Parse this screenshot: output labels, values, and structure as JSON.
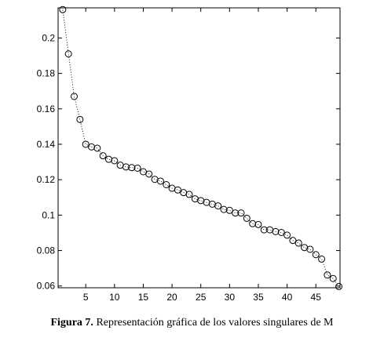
{
  "caption": {
    "label": "Figura 7.",
    "text": " Representación gráfica de los valores singulares de M"
  },
  "chart_data": {
    "type": "line",
    "title": "",
    "xlabel": "",
    "ylabel": "",
    "xlim": [
      0.2,
      49.2
    ],
    "ylim": [
      0.059,
      0.217
    ],
    "xticks": [
      5,
      10,
      15,
      20,
      25,
      30,
      35,
      40,
      45
    ],
    "xtick_labels": [
      "5",
      "10",
      "15",
      "20",
      "25",
      "30",
      "35",
      "40",
      "45"
    ],
    "yticks": [
      0.06,
      0.08,
      0.1,
      0.12,
      0.14,
      0.16,
      0.18,
      0.2
    ],
    "ytick_labels": [
      "0.06",
      "0.08",
      "0.1",
      "0.12",
      "0.14",
      "0.16",
      "0.18",
      "0.2"
    ],
    "grid": false,
    "line_style": "dotted",
    "marker": "circle",
    "series": [
      {
        "x": [
          1,
          2,
          3,
          4,
          5,
          6,
          7,
          8,
          9,
          10,
          11,
          12,
          13,
          14,
          15,
          16,
          17,
          18,
          19,
          20,
          21,
          22,
          23,
          24,
          25,
          26,
          27,
          28,
          29,
          30,
          31,
          32,
          33,
          34,
          35,
          36,
          37,
          38,
          39,
          40,
          41,
          42,
          43,
          44,
          45,
          46,
          47,
          48,
          49
        ],
        "values": [
          0.216,
          0.191,
          0.167,
          0.154,
          0.14,
          0.1385,
          0.1378,
          0.1335,
          0.1315,
          0.1307,
          0.1282,
          0.1272,
          0.1268,
          0.1265,
          0.1245,
          0.1232,
          0.1202,
          0.1192,
          0.1172,
          0.1152,
          0.1142,
          0.1127,
          0.1117,
          0.1092,
          0.1082,
          0.1072,
          0.1062,
          0.1052,
          0.1032,
          0.1027,
          0.1012,
          0.1012,
          0.0982,
          0.0952,
          0.0947,
          0.0917,
          0.0917,
          0.0907,
          0.0902,
          0.0887,
          0.0857,
          0.0842,
          0.0817,
          0.0807,
          0.0777,
          0.0752,
          0.0662,
          0.0642,
          0.0597
        ]
      }
    ]
  }
}
